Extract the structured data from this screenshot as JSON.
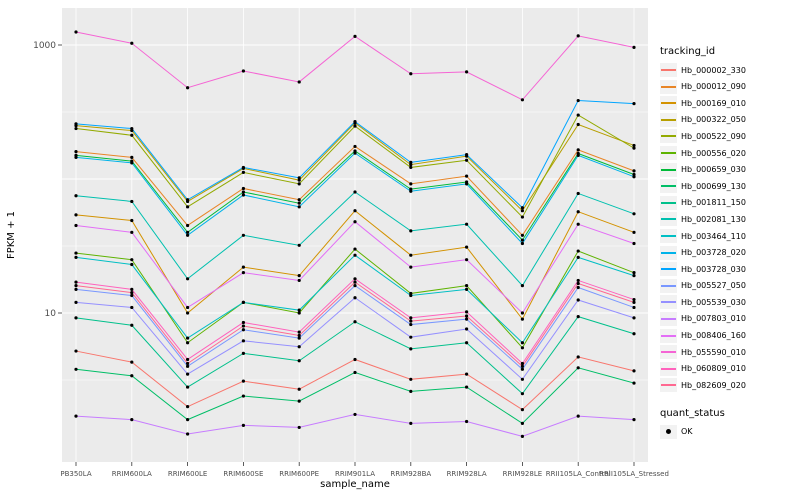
{
  "chart_data": {
    "type": "line",
    "title": "",
    "xlabel": "sample_name",
    "ylabel": "FPKM + 1",
    "y_scale": "log10",
    "ylim": [
      0.8,
      1900
    ],
    "grid": true,
    "panel_bg": "#EBEBEB",
    "grid_color": "#FFFFFF",
    "point_color": "#000000",
    "tick_color": "#333333",
    "tick_label_color": "#4D4D4D",
    "y_ticks": [
      {
        "label": "1000",
        "value": 1000
      },
      {
        "label": "10",
        "value": 10
      }
    ],
    "y_major_gridlines": [
      10,
      100,
      1000
    ],
    "y_minor_gridlines": [
      3.162,
      31.62,
      316.2
    ],
    "categories": [
      "PB350LA",
      "RRIM600LA",
      "RRIM600LE",
      "RRIM600SE",
      "RRIM600PE",
      "RRIM901LA",
      "RRIM928BA",
      "RRIM928LA",
      "RRIM928LE",
      "RRII105LA_Control",
      "RRII105LA_Stressed"
    ],
    "legend": {
      "color_title": "tracking_id",
      "shape_title": "quant_status",
      "shape_items": [
        {
          "label": "OK"
        }
      ]
    },
    "series": [
      {
        "name": "Hb_000002_330",
        "color": "#F8766D",
        "values": [
          5.2,
          4.3,
          2.0,
          3.1,
          2.7,
          4.5,
          3.2,
          3.5,
          1.9,
          4.7,
          3.7
        ]
      },
      {
        "name": "Hb_000012_090",
        "color": "#E88526",
        "values": [
          160,
          145,
          45,
          85,
          70,
          175,
          92,
          105,
          38,
          165,
          115
        ]
      },
      {
        "name": "Hb_000169_010",
        "color": "#D39200",
        "values": [
          54,
          49,
          10,
          22,
          19,
          58,
          27,
          31,
          9,
          57,
          40
        ]
      },
      {
        "name": "Hb_000322_050",
        "color": "#B79F00",
        "values": [
          250,
          230,
          68,
          120,
          98,
          262,
          128,
          148,
          58,
          255,
          178
        ]
      },
      {
        "name": "Hb_000522_090",
        "color": "#93AA00",
        "values": [
          238,
          212,
          62,
          112,
          92,
          248,
          122,
          138,
          52,
          300,
          170
        ]
      },
      {
        "name": "Hb_000556_020",
        "color": "#5EB300",
        "values": [
          28,
          25,
          6,
          12,
          10,
          30,
          14,
          16,
          5.5,
          29,
          20
        ]
      },
      {
        "name": "Hb_000659_030",
        "color": "#00BA38",
        "values": [
          150,
          136,
          40,
          80,
          66,
          162,
          84,
          95,
          35,
          155,
          108
        ]
      },
      {
        "name": "Hb_000699_130",
        "color": "#00BE67",
        "values": [
          3.8,
          3.4,
          1.6,
          2.4,
          2.2,
          3.6,
          2.6,
          2.8,
          1.5,
          3.9,
          3.0
        ]
      },
      {
        "name": "Hb_001811_150",
        "color": "#00C08B",
        "values": [
          9.2,
          8.1,
          2.8,
          5.0,
          4.4,
          8.6,
          5.4,
          6.0,
          2.5,
          9.4,
          7.0
        ]
      },
      {
        "name": "Hb_002081_130",
        "color": "#00C0AF",
        "values": [
          75,
          68,
          18,
          38,
          32,
          80,
          41,
          46,
          16,
          78,
          55
        ]
      },
      {
        "name": "Hb_003464_110",
        "color": "#00BFC4",
        "values": [
          26,
          23,
          6.5,
          12,
          10.5,
          27,
          13.5,
          15,
          6,
          26,
          19
        ]
      },
      {
        "name": "Hb_003728_020",
        "color": "#00B3E9",
        "values": [
          145,
          132,
          38,
          76,
          62,
          156,
          81,
          92,
          33,
          150,
          104
        ]
      },
      {
        "name": "Hb_003728_030",
        "color": "#00A5FF",
        "values": [
          258,
          238,
          70,
          122,
          102,
          268,
          133,
          152,
          61,
          385,
          365
        ]
      },
      {
        "name": "Hb_005527_050",
        "color": "#7997FF",
        "values": [
          15,
          13.5,
          4.0,
          7.5,
          6.5,
          16,
          8.2,
          9.0,
          3.8,
          15.5,
          11
        ]
      },
      {
        "name": "Hb_005539_030",
        "color": "#9590FF",
        "values": [
          12,
          11,
          3.5,
          6.2,
          5.6,
          13,
          6.6,
          7.6,
          3.2,
          12.5,
          9.2
        ]
      },
      {
        "name": "Hb_007803_010",
        "color": "#C77CFF",
        "values": [
          1.7,
          1.6,
          1.25,
          1.45,
          1.4,
          1.75,
          1.5,
          1.55,
          1.2,
          1.7,
          1.6
        ]
      },
      {
        "name": "Hb_008406_160",
        "color": "#E36EF6",
        "values": [
          45,
          40,
          11,
          20,
          17.5,
          48,
          22,
          25,
          10,
          46,
          33
        ]
      },
      {
        "name": "Hb_055590_010",
        "color": "#F564D4",
        "values": [
          1250,
          1030,
          480,
          640,
          530,
          1160,
          610,
          630,
          390,
          1170,
          960
        ]
      },
      {
        "name": "Hb_060809_010",
        "color": "#FF62BC",
        "values": [
          17,
          15,
          4.5,
          8.5,
          7.2,
          18,
          9.2,
          10.2,
          4.2,
          17.5,
          12.6
        ]
      },
      {
        "name": "Hb_082609_020",
        "color": "#FF6891",
        "values": [
          16,
          14.2,
          4.2,
          8.0,
          6.8,
          17,
          8.7,
          9.5,
          4.0,
          16.6,
          12.0
        ]
      }
    ]
  }
}
